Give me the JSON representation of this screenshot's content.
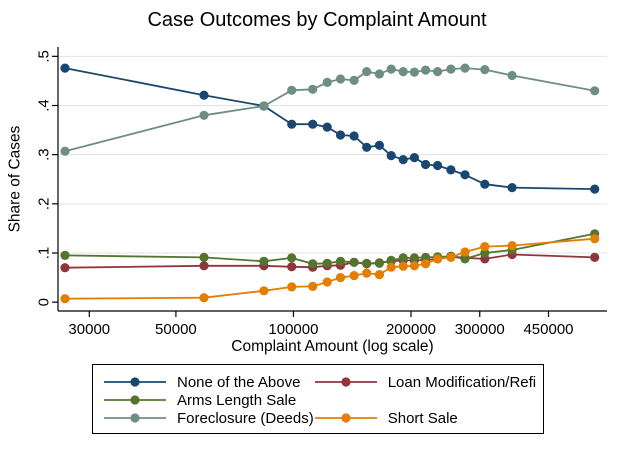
{
  "title": "Case Outcomes by Complaint Amount",
  "chart_data": {
    "type": "line",
    "title": "Case Outcomes by Complaint Amount",
    "xlabel": "Complaint Amount (log scale)",
    "ylabel": "Share of Cases",
    "x_scale": "log10",
    "grid": "horizontal-only",
    "grid_color": "#e3e3e3",
    "axis_color": "#000000",
    "background_color": "#ffffff",
    "xlim_log10": [
      4.397,
      5.803
    ],
    "ylim": [
      -0.018,
      0.519
    ],
    "x_ticks": [
      30000,
      50000,
      100000,
      200000,
      300000,
      450000
    ],
    "x_tick_labels": [
      "30000",
      "50000",
      "100000",
      "200000",
      "300000",
      "450000"
    ],
    "y_ticks": [
      0,
      0.1,
      0.2,
      0.3,
      0.4,
      0.5
    ],
    "y_tick_labels": [
      "0",
      ".1",
      ".2",
      ".3",
      ".4",
      ".5"
    ],
    "x": [
      26000,
      59000,
      84000,
      99000,
      112000,
      122000,
      132000,
      143000,
      154000,
      166000,
      178000,
      191000,
      204000,
      218000,
      234000,
      253000,
      275000,
      309000,
      363000,
      591000
    ],
    "series": [
      {
        "name": "None of the Above",
        "color": "#1a476f",
        "values": [
          0.476,
          0.421,
          0.399,
          0.362,
          0.362,
          0.356,
          0.34,
          0.338,
          0.315,
          0.319,
          0.298,
          0.29,
          0.294,
          0.28,
          0.278,
          0.269,
          0.259,
          0.24,
          0.233,
          0.23
        ]
      },
      {
        "name": "Loan Modification/Refi",
        "color": "#90353b",
        "values": [
          0.07,
          0.074,
          0.074,
          0.072,
          0.071,
          0.074,
          0.075,
          0.081,
          0.078,
          0.08,
          0.083,
          0.085,
          0.085,
          0.086,
          0.088,
          0.093,
          0.09,
          0.088,
          0.097,
          0.091
        ]
      },
      {
        "name": "Arms Length Sale",
        "color": "#55752f",
        "values": [
          0.095,
          0.091,
          0.083,
          0.09,
          0.078,
          0.079,
          0.083,
          0.081,
          0.079,
          0.079,
          0.085,
          0.09,
          0.09,
          0.091,
          0.092,
          0.093,
          0.088,
          0.1,
          0.106,
          0.139
        ]
      },
      {
        "name": "Short Sale",
        "color": "#e37e00",
        "values": [
          0.007,
          0.009,
          0.023,
          0.031,
          0.032,
          0.041,
          0.05,
          0.054,
          0.059,
          0.056,
          0.071,
          0.073,
          0.074,
          0.078,
          0.088,
          0.091,
          0.102,
          0.113,
          0.115,
          0.129
        ]
      },
      {
        "name": "Foreclosure (Deeds)",
        "color": "#6e8e84",
        "values": [
          0.307,
          0.38,
          0.399,
          0.431,
          0.433,
          0.447,
          0.454,
          0.451,
          0.469,
          0.464,
          0.474,
          0.469,
          0.468,
          0.472,
          0.469,
          0.474,
          0.476,
          0.473,
          0.461,
          0.43
        ]
      }
    ],
    "legend": {
      "position": "bottom",
      "border": "#000000",
      "columns": [
        [
          0,
          2,
          4
        ],
        [
          1,
          3
        ]
      ]
    }
  }
}
